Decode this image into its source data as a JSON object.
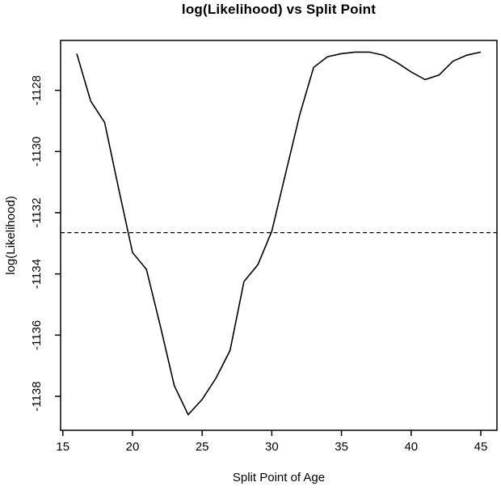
{
  "chart_data": {
    "type": "line",
    "title": "log(Likelihood) vs Split Point",
    "xlabel": "Split Point of Age",
    "ylabel": "log(Likelihood)",
    "x": [
      16,
      17,
      18,
      19,
      20,
      21,
      22,
      23,
      24,
      25,
      26,
      27,
      28,
      29,
      30,
      31,
      32,
      33,
      34,
      35,
      36,
      37,
      38,
      39,
      40,
      41,
      42,
      43,
      44,
      45
    ],
    "series": [
      {
        "name": "log-likelihood",
        "values": [
          -1126.8,
          -1128.35,
          -1129.05,
          -1131.2,
          -1133.3,
          -1133.85,
          -1135.7,
          -1137.65,
          -1138.6,
          -1138.1,
          -1137.4,
          -1136.5,
          -1134.25,
          -1133.7,
          -1132.6,
          -1130.7,
          -1128.8,
          -1127.25,
          -1126.9,
          -1126.8,
          -1126.75,
          -1126.75,
          -1126.85,
          -1127.1,
          -1127.4,
          -1127.65,
          -1127.5,
          -1127.05,
          -1126.85,
          -1126.75
        ]
      }
    ],
    "reference_line": {
      "orientation": "horizontal",
      "value": -1132.65,
      "style": "dashed"
    },
    "x_ticks": [
      15,
      20,
      25,
      30,
      35,
      40,
      45
    ],
    "x_tick_labels": [
      "15",
      "20",
      "25",
      "30",
      "35",
      "40",
      "45"
    ],
    "y_ticks": [
      -1128,
      -1130,
      -1132,
      -1134,
      -1136,
      -1138
    ],
    "y_tick_labels": [
      "-1128",
      "-1130",
      "-1132",
      "-1134",
      "-1136",
      "-1138"
    ],
    "xlim": [
      14.84,
      46.16
    ],
    "ylim": [
      -1139.11,
      -1126.37
    ],
    "grid": false,
    "legend": null,
    "line_color": "#000000",
    "background_color": "#ffffff"
  }
}
